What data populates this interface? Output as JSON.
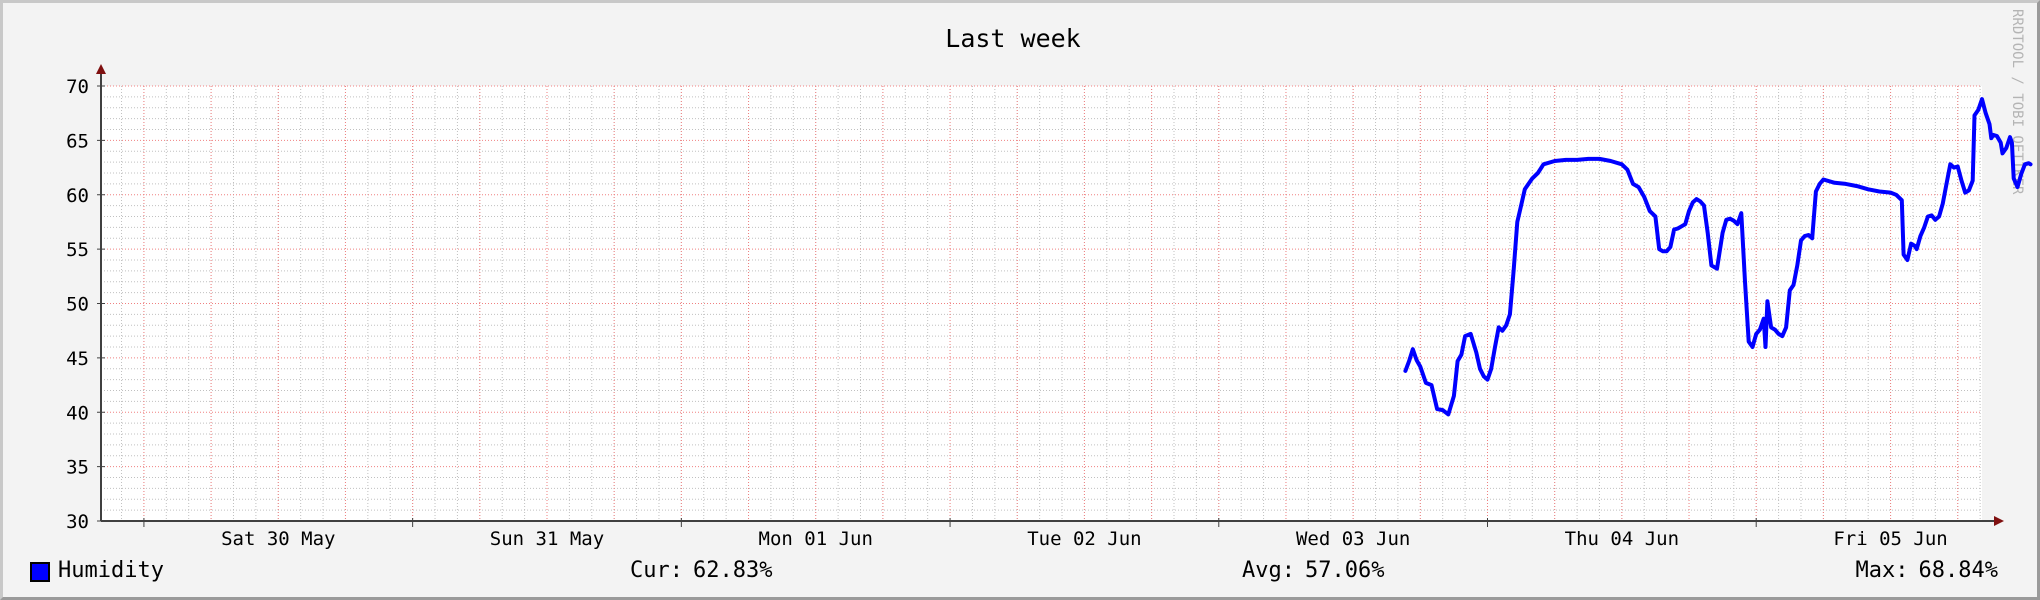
{
  "watermark": "RRDTOOL / TOBI OETIKER",
  "legend": {
    "label": "Humidity",
    "cur_label": "Cur:",
    "cur_value": "62.83%",
    "avg_label": "Avg:",
    "avg_value": "57.06%",
    "max_label": "Max:",
    "max_value": "68.84%"
  },
  "colors": {
    "line": "#0000ff",
    "grid_major": "#f08080",
    "grid_minor": "#c0c0c0",
    "axis": "#404040",
    "arrow": "#7f1010",
    "background": "#f3f3f3",
    "plot_background": "#ffffff"
  },
  "chart_data": {
    "type": "line",
    "title": "Last week",
    "xlabel": "",
    "ylabel": "",
    "ylim": [
      30,
      70
    ],
    "y_ticks": [
      30,
      35,
      40,
      45,
      50,
      55,
      60,
      65,
      70
    ],
    "xlim": [
      "2020-05-29 20:10",
      "2020-06-05 20:10"
    ],
    "x_tick_labels": [
      {
        "label": "Sat 30 May",
        "at": "2020-05-30 12:00"
      },
      {
        "label": "Sun 31 May",
        "at": "2020-05-31 12:00"
      },
      {
        "label": "Mon 01 Jun",
        "at": "2020-06-01 12:00"
      },
      {
        "label": "Tue 02 Jun",
        "at": "2020-06-02 12:00"
      },
      {
        "label": "Wed 03 Jun",
        "at": "2020-06-03 12:00"
      },
      {
        "label": "Thu 04 Jun",
        "at": "2020-06-04 12:00"
      },
      {
        "label": "Fri 05 Jun",
        "at": "2020-06-05 12:00"
      }
    ],
    "grid": true,
    "legend_position": "bottom",
    "series": [
      {
        "name": "Humidity",
        "color": "#0000ff",
        "points": [
          [
            "2020-06-03 16:40",
            43.8
          ],
          [
            "2020-06-03 17:00",
            44.7
          ],
          [
            "2020-06-03 17:20",
            45.8
          ],
          [
            "2020-06-03 17:40",
            44.8
          ],
          [
            "2020-06-03 18:00",
            44.2
          ],
          [
            "2020-06-03 18:30",
            42.7
          ],
          [
            "2020-06-03 19:00",
            42.5
          ],
          [
            "2020-06-03 19:30",
            40.3
          ],
          [
            "2020-06-03 20:00",
            40.2
          ],
          [
            "2020-06-03 20:30",
            39.8
          ],
          [
            "2020-06-03 21:00",
            41.5
          ],
          [
            "2020-06-03 21:20",
            44.7
          ],
          [
            "2020-06-03 21:40",
            45.3
          ],
          [
            "2020-06-03 22:00",
            47.0
          ],
          [
            "2020-06-03 22:30",
            47.2
          ],
          [
            "2020-06-03 23:00",
            45.5
          ],
          [
            "2020-06-03 23:20",
            44.0
          ],
          [
            "2020-06-03 23:40",
            43.3
          ],
          [
            "2020-06-04 00:00",
            43.0
          ],
          [
            "2020-06-04 00:20",
            44.0
          ],
          [
            "2020-06-04 00:40",
            46.0
          ],
          [
            "2020-06-04 01:00",
            47.8
          ],
          [
            "2020-06-04 01:20",
            47.5
          ],
          [
            "2020-06-04 01:40",
            48.0
          ],
          [
            "2020-06-04 02:00",
            49.0
          ],
          [
            "2020-06-04 02:20",
            53.0
          ],
          [
            "2020-06-04 02:40",
            57.5
          ],
          [
            "2020-06-04 03:00",
            59.0
          ],
          [
            "2020-06-04 03:20",
            60.5
          ],
          [
            "2020-06-04 03:40",
            61.0
          ],
          [
            "2020-06-04 04:00",
            61.5
          ],
          [
            "2020-06-04 04:30",
            62.0
          ],
          [
            "2020-06-04 05:00",
            62.8
          ],
          [
            "2020-06-04 06:00",
            63.1
          ],
          [
            "2020-06-04 07:00",
            63.2
          ],
          [
            "2020-06-04 08:00",
            63.2
          ],
          [
            "2020-06-04 09:00",
            63.3
          ],
          [
            "2020-06-04 10:00",
            63.3
          ],
          [
            "2020-06-04 11:00",
            63.1
          ],
          [
            "2020-06-04 12:00",
            62.8
          ],
          [
            "2020-06-04 12:30",
            62.3
          ],
          [
            "2020-06-04 13:00",
            61.0
          ],
          [
            "2020-06-04 13:30",
            60.7
          ],
          [
            "2020-06-04 14:00",
            59.8
          ],
          [
            "2020-06-04 14:30",
            58.5
          ],
          [
            "2020-06-04 15:00",
            58.0
          ],
          [
            "2020-06-04 15:20",
            55.0
          ],
          [
            "2020-06-04 15:40",
            54.8
          ],
          [
            "2020-06-04 16:00",
            54.8
          ],
          [
            "2020-06-04 16:20",
            55.2
          ],
          [
            "2020-06-04 16:40",
            56.8
          ],
          [
            "2020-06-04 17:00",
            56.9
          ],
          [
            "2020-06-04 17:20",
            57.1
          ],
          [
            "2020-06-04 17:40",
            57.3
          ],
          [
            "2020-06-04 18:00",
            58.5
          ],
          [
            "2020-06-04 18:20",
            59.3
          ],
          [
            "2020-06-04 18:40",
            59.6
          ],
          [
            "2020-06-04 19:00",
            59.4
          ],
          [
            "2020-06-04 19:20",
            59.0
          ],
          [
            "2020-06-04 19:40",
            56.5
          ],
          [
            "2020-06-04 20:00",
            53.5
          ],
          [
            "2020-06-04 20:30",
            53.2
          ],
          [
            "2020-06-04 21:00",
            56.5
          ],
          [
            "2020-06-04 21:20",
            57.7
          ],
          [
            "2020-06-04 21:40",
            57.8
          ],
          [
            "2020-06-04 22:00",
            57.6
          ],
          [
            "2020-06-04 22:20",
            57.3
          ],
          [
            "2020-06-04 22:40",
            58.3
          ],
          [
            "2020-06-04 23:00",
            52.0
          ],
          [
            "2020-06-04 23:20",
            46.5
          ],
          [
            "2020-06-04 23:40",
            46.0
          ],
          [
            "2020-06-05 00:00",
            47.2
          ],
          [
            "2020-06-05 00:20",
            47.6
          ],
          [
            "2020-06-05 00:40",
            48.6
          ],
          [
            "2020-06-05 00:50",
            46.0
          ],
          [
            "2020-06-05 01:00",
            50.2
          ],
          [
            "2020-06-05 01:20",
            47.8
          ],
          [
            "2020-06-05 01:40",
            47.6
          ],
          [
            "2020-06-05 02:00",
            47.2
          ],
          [
            "2020-06-05 02:20",
            47.0
          ],
          [
            "2020-06-05 02:40",
            47.8
          ],
          [
            "2020-06-05 03:00",
            51.2
          ],
          [
            "2020-06-05 03:20",
            51.7
          ],
          [
            "2020-06-05 03:40",
            53.5
          ],
          [
            "2020-06-05 04:00",
            55.8
          ],
          [
            "2020-06-05 04:20",
            56.2
          ],
          [
            "2020-06-05 04:40",
            56.3
          ],
          [
            "2020-06-05 05:00",
            56.0
          ],
          [
            "2020-06-05 05:20",
            60.3
          ],
          [
            "2020-06-05 05:40",
            61.0
          ],
          [
            "2020-06-05 06:00",
            61.4
          ],
          [
            "2020-06-05 07:00",
            61.1
          ],
          [
            "2020-06-05 08:00",
            61.0
          ],
          [
            "2020-06-05 09:00",
            60.8
          ],
          [
            "2020-06-05 10:00",
            60.5
          ],
          [
            "2020-06-05 11:00",
            60.3
          ],
          [
            "2020-06-05 12:00",
            60.2
          ],
          [
            "2020-06-05 12:30",
            60.0
          ],
          [
            "2020-06-05 13:00",
            59.5
          ],
          [
            "2020-06-05 13:10",
            54.5
          ],
          [
            "2020-06-05 13:30",
            54.0
          ],
          [
            "2020-06-05 13:50",
            55.5
          ],
          [
            "2020-06-05 14:10",
            55.3
          ],
          [
            "2020-06-05 14:20",
            55.0
          ],
          [
            "2020-06-05 14:40",
            56.2
          ],
          [
            "2020-06-05 15:00",
            57.0
          ],
          [
            "2020-06-05 15:20",
            58.0
          ],
          [
            "2020-06-05 15:40",
            58.1
          ],
          [
            "2020-06-05 16:00",
            57.7
          ],
          [
            "2020-06-05 16:20",
            58.0
          ],
          [
            "2020-06-05 16:40",
            59.2
          ],
          [
            "2020-06-05 17:00",
            61.0
          ],
          [
            "2020-06-05 17:20",
            62.8
          ],
          [
            "2020-06-05 17:40",
            62.5
          ],
          [
            "2020-06-05 18:00",
            62.6
          ],
          [
            "2020-06-05 18:20",
            61.3
          ],
          [
            "2020-06-05 18:40",
            60.2
          ],
          [
            "2020-06-05 19:00",
            60.4
          ],
          [
            "2020-06-05 19:20",
            61.3
          ],
          [
            "2020-06-05 19:30",
            67.3
          ],
          [
            "2020-06-05 19:50",
            67.8
          ],
          [
            "2020-06-05 20:10",
            68.8
          ],
          [
            "2020-06-05 20:30",
            67.5
          ],
          [
            "2020-06-05 20:50",
            66.5
          ],
          [
            "2020-06-05 21:00",
            65.2
          ],
          [
            "2020-06-05 21:10",
            65.5
          ],
          [
            "2020-06-05 21:30",
            65.4
          ],
          [
            "2020-06-05 21:50",
            64.8
          ],
          [
            "2020-06-05 22:00",
            63.8
          ],
          [
            "2020-06-05 22:20",
            64.3
          ],
          [
            "2020-06-05 22:40",
            65.3
          ],
          [
            "2020-06-05 22:50",
            64.8
          ],
          [
            "2020-06-05 23:00",
            61.5
          ],
          [
            "2020-06-05 23:20",
            60.7
          ],
          [
            "2020-06-05 23:40",
            61.9
          ],
          [
            "2020-06-06 00:00",
            62.8
          ],
          [
            "2020-06-06 00:20",
            62.9
          ],
          [
            "2020-06-06 00:30",
            62.8
          ]
        ]
      }
    ]
  }
}
